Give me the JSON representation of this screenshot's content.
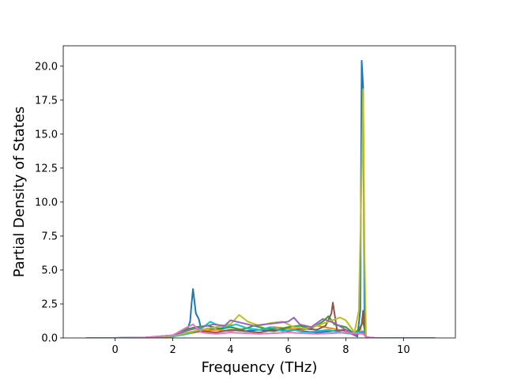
{
  "chart_data": {
    "type": "line",
    "xlabel": "Frequency (THz)",
    "ylabel": "Partial Density of States",
    "xlim": [
      -1.8,
      11.8
    ],
    "ylim": [
      0,
      21.5
    ],
    "xticks": [
      0,
      2,
      4,
      6,
      8,
      10
    ],
    "yticks": [
      0.0,
      2.5,
      5.0,
      7.5,
      10.0,
      12.5,
      15.0,
      17.5,
      20.0
    ],
    "xtick_labels": [
      "0",
      "2",
      "4",
      "6",
      "8",
      "10"
    ],
    "ytick_labels": [
      "0.0",
      "2.5",
      "5.0",
      "7.5",
      "10.0",
      "12.5",
      "15.0",
      "17.5",
      "20.0"
    ],
    "grid": false,
    "legend": "none",
    "series": [
      {
        "color": "#1f77b4",
        "x": [
          -1.0,
          0.0,
          1.0,
          1.8,
          2.1,
          2.3,
          2.5,
          2.6,
          2.65,
          2.7,
          2.8,
          2.9,
          3.0,
          3.2,
          3.5,
          4.0,
          4.5,
          5.0,
          5.5,
          6.0,
          6.5,
          7.0,
          7.5,
          8.0,
          8.2,
          8.4,
          8.5,
          8.55,
          8.6,
          8.65,
          8.7,
          9.0,
          10.0,
          11.1
        ],
        "y": [
          0,
          0,
          0.02,
          0.1,
          0.2,
          0.35,
          0.6,
          1.2,
          2.5,
          3.6,
          1.8,
          1.4,
          0.5,
          0.7,
          0.6,
          0.8,
          0.5,
          0.6,
          0.5,
          0.7,
          0.5,
          0.4,
          0.5,
          0.6,
          0.3,
          0.1,
          2.0,
          20.4,
          18.5,
          1.0,
          0.05,
          0,
          0,
          0
        ]
      },
      {
        "color": "#ff7f0e",
        "x": [
          -1.0,
          0.0,
          1.0,
          2.0,
          2.5,
          3.0,
          3.5,
          4.0,
          4.5,
          5.0,
          5.5,
          6.0,
          6.5,
          7.0,
          7.5,
          8.0,
          8.3,
          8.5,
          8.6,
          8.7,
          9.0,
          11.1
        ],
        "y": [
          0,
          0,
          0.03,
          0.15,
          0.3,
          0.5,
          0.6,
          0.5,
          0.7,
          0.6,
          0.8,
          0.7,
          0.6,
          0.9,
          0.7,
          0.5,
          0.2,
          0.6,
          1.5,
          0.05,
          0,
          0
        ]
      },
      {
        "color": "#2ca02c",
        "x": [
          -1.0,
          0.0,
          1.0,
          2.0,
          2.4,
          2.8,
          3.2,
          3.6,
          4.0,
          4.4,
          4.8,
          5.2,
          5.6,
          6.0,
          6.4,
          6.8,
          7.2,
          7.4,
          7.6,
          8.0,
          8.3,
          8.5,
          8.6,
          8.7,
          9.0,
          11.1
        ],
        "y": [
          0,
          0,
          0.02,
          0.2,
          0.6,
          0.8,
          0.9,
          0.7,
          0.8,
          0.6,
          0.9,
          0.7,
          0.6,
          0.8,
          0.9,
          0.7,
          1.2,
          1.6,
          1.0,
          0.8,
          0.3,
          0.8,
          1.2,
          0.05,
          0,
          0
        ]
      },
      {
        "color": "#8c564b",
        "x": [
          -1.0,
          0.0,
          1.0,
          2.0,
          2.6,
          3.0,
          3.5,
          4.0,
          4.5,
          5.0,
          5.5,
          6.0,
          6.5,
          7.0,
          7.3,
          7.5,
          7.55,
          7.7,
          8.0,
          8.4,
          8.55,
          8.6,
          8.7,
          9.0,
          11.1
        ],
        "y": [
          0,
          0,
          0.02,
          0.1,
          0.4,
          0.5,
          0.4,
          0.6,
          0.5,
          0.4,
          0.6,
          0.5,
          0.7,
          0.6,
          0.9,
          1.8,
          2.6,
          0.5,
          0.6,
          0.2,
          1.0,
          2.0,
          0.05,
          0,
          0
        ]
      },
      {
        "color": "#17becf",
        "x": [
          -1.0,
          0.0,
          1.0,
          2.0,
          2.5,
          3.0,
          3.3,
          3.5,
          3.8,
          4.2,
          4.6,
          5.0,
          5.4,
          5.8,
          6.2,
          6.6,
          7.0,
          7.4,
          7.8,
          8.2,
          8.6,
          8.7,
          9.0,
          11.1
        ],
        "y": [
          0,
          0,
          0.02,
          0.1,
          0.3,
          0.7,
          1.2,
          1.0,
          0.8,
          1.0,
          0.7,
          0.6,
          0.8,
          0.5,
          0.6,
          0.4,
          0.5,
          0.6,
          0.4,
          0.3,
          0.5,
          0.05,
          0,
          0
        ]
      },
      {
        "color": "#bcbd22",
        "x": [
          -1.0,
          0.0,
          1.0,
          2.0,
          2.5,
          3.0,
          3.5,
          4.0,
          4.3,
          4.6,
          5.0,
          5.4,
          5.8,
          6.2,
          6.6,
          7.0,
          7.4,
          7.8,
          8.0,
          8.3,
          8.45,
          8.55,
          8.6,
          8.65,
          8.7,
          9.0,
          11.1
        ],
        "y": [
          0,
          0,
          0.02,
          0.15,
          0.4,
          0.6,
          0.8,
          1.0,
          1.7,
          1.2,
          0.9,
          1.1,
          1.2,
          0.8,
          0.7,
          0.9,
          1.2,
          1.5,
          1.3,
          0.4,
          2.0,
          12.0,
          18.3,
          6.0,
          0.05,
          0,
          0
        ]
      },
      {
        "color": "#9467bd",
        "x": [
          -1.0,
          0.0,
          1.0,
          2.0,
          2.6,
          3.0,
          3.4,
          3.8,
          4.0,
          4.4,
          4.8,
          5.2,
          5.6,
          6.0,
          6.2,
          6.4,
          6.8,
          7.2,
          7.6,
          8.0,
          8.3,
          8.6,
          8.7,
          9.0,
          11.1
        ],
        "y": [
          0,
          0,
          0.02,
          0.2,
          0.6,
          0.8,
          1.0,
          0.9,
          1.3,
          1.1,
          0.9,
          1.0,
          1.1,
          1.2,
          1.5,
          1.0,
          0.8,
          1.4,
          1.1,
          0.6,
          0.2,
          0.4,
          0.05,
          0,
          0
        ]
      },
      {
        "color": "#e377c2",
        "x": [
          -1.0,
          0.0,
          1.0,
          2.0,
          2.5,
          2.7,
          3.0,
          3.5,
          4.0,
          5.0,
          6.0,
          7.0,
          8.0,
          8.6,
          8.7,
          9.0,
          11.1
        ],
        "y": [
          0,
          0,
          0.02,
          0.2,
          0.8,
          1.0,
          0.4,
          0.3,
          0.4,
          0.3,
          0.4,
          0.3,
          0.4,
          0.3,
          0.05,
          0,
          0
        ]
      }
    ]
  }
}
